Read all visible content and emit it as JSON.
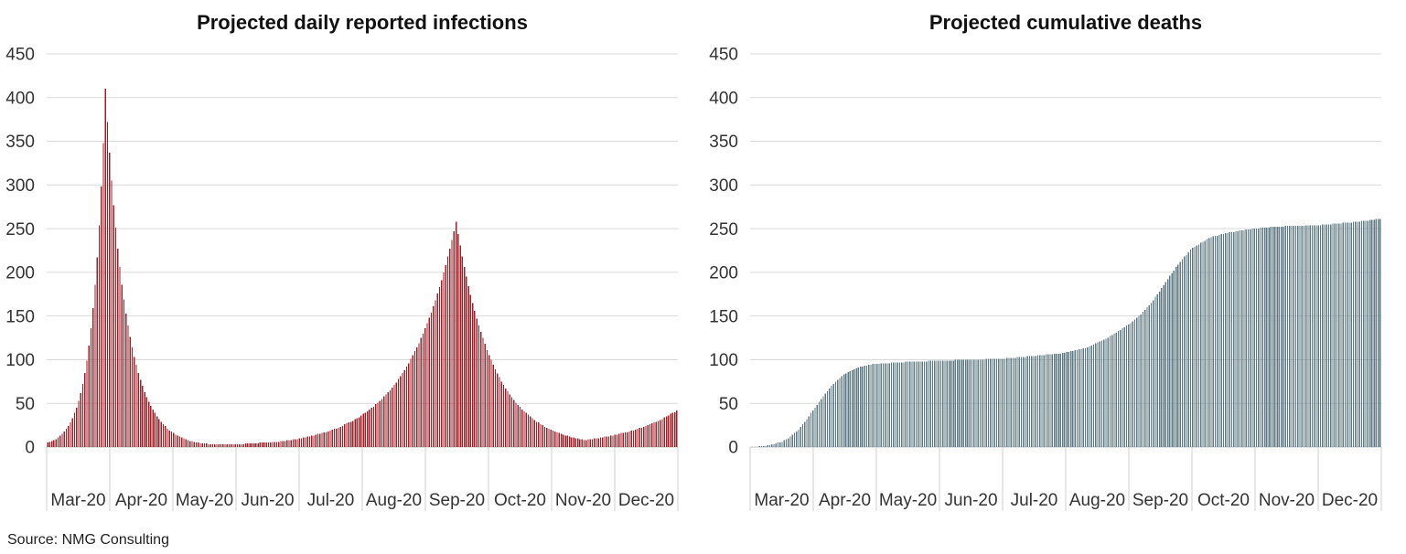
{
  "page": {
    "source_note": "Source: NMG Consulting",
    "background": "#ffffff"
  },
  "chart_data": [
    {
      "type": "bar",
      "title": "Projected daily reported infections",
      "bar_color": "#a21e24",
      "gridline_color": "#d9d9d9",
      "grid": true,
      "legend": "none",
      "x_unit": "day",
      "ylim": [
        0,
        450
      ],
      "y_ticks": [
        0,
        50,
        100,
        150,
        200,
        250,
        300,
        350,
        400,
        450
      ],
      "x_labels": [
        "Mar-20",
        "Apr-20",
        "May-20",
        "Jun-20",
        "Jul-20",
        "Aug-20",
        "Sep-20",
        "Oct-20",
        "Nov-20",
        "Dec-20"
      ],
      "peak_values": {
        "first_wave_peak": 410,
        "second_wave_peak": 258
      },
      "values": [
        5,
        6,
        7,
        8,
        9,
        11,
        13,
        15,
        18,
        21,
        24,
        28,
        33,
        39,
        45,
        53,
        62,
        72,
        85,
        99,
        116,
        136,
        159,
        186,
        217,
        254,
        298,
        348,
        410,
        372,
        337,
        305,
        277,
        251,
        227,
        206,
        186,
        169,
        153,
        139,
        126,
        114,
        103,
        94,
        85,
        77,
        70,
        63,
        57,
        52,
        47,
        43,
        39,
        35,
        32,
        29,
        26,
        24,
        21,
        19,
        18,
        16,
        14,
        13,
        12,
        11,
        10,
        9,
        8,
        7,
        7,
        6,
        5,
        5,
        4,
        4,
        4,
        4,
        3,
        3,
        3,
        3,
        3,
        3,
        3,
        3,
        3,
        3,
        3,
        3,
        3,
        3,
        3,
        3,
        3,
        3,
        4,
        4,
        4,
        4,
        4,
        4,
        4,
        5,
        5,
        5,
        5,
        5,
        5,
        6,
        6,
        6,
        6,
        7,
        7,
        7,
        8,
        8,
        8,
        9,
        9,
        9,
        10,
        10,
        11,
        11,
        12,
        12,
        13,
        13,
        14,
        15,
        15,
        16,
        17,
        17,
        18,
        19,
        20,
        21,
        21,
        22,
        23,
        24,
        26,
        27,
        28,
        29,
        30,
        32,
        33,
        34,
        36,
        38,
        39,
        41,
        43,
        45,
        46,
        49,
        51,
        53,
        55,
        58,
        60,
        63,
        65,
        68,
        71,
        74,
        78,
        81,
        85,
        88,
        92,
        96,
        101,
        105,
        110,
        114,
        119,
        125,
        130,
        136,
        142,
        148,
        154,
        161,
        168,
        176,
        183,
        191,
        200,
        208,
        218,
        227,
        237,
        247,
        258,
        244,
        231,
        218,
        206,
        195,
        184,
        174,
        165,
        156,
        147,
        139,
        132,
        125,
        118,
        111,
        105,
        100,
        94,
        89,
        84,
        80,
        75,
        71,
        67,
        64,
        60,
        57,
        54,
        51,
        48,
        46,
        43,
        41,
        39,
        37,
        35,
        33,
        31,
        29,
        28,
        26,
        25,
        23,
        22,
        21,
        20,
        19,
        18,
        17,
        16,
        15,
        14,
        13,
        13,
        12,
        11,
        11,
        10,
        10,
        9,
        9,
        8,
        8,
        9,
        9,
        9,
        10,
        10,
        10,
        11,
        11,
        12,
        12,
        12,
        13,
        13,
        14,
        14,
        15,
        16,
        16,
        17,
        17,
        18,
        19,
        19,
        20,
        21,
        22,
        22,
        23,
        24,
        25,
        26,
        27,
        28,
        29,
        30,
        31,
        32,
        34,
        35,
        36,
        38,
        39,
        40,
        42
      ]
    },
    {
      "type": "bar",
      "title": "Projected cumulative deaths",
      "bar_color": "#5c7886",
      "gridline_color": "#d9d9d9",
      "grid": true,
      "legend": "none",
      "x_unit": "day",
      "ylim": [
        0,
        450
      ],
      "y_ticks": [
        0,
        50,
        100,
        150,
        200,
        250,
        300,
        350,
        400,
        450
      ],
      "x_labels": [
        "Mar-20",
        "Apr-20",
        "May-20",
        "Jun-20",
        "Jul-20",
        "Aug-20",
        "Sep-20",
        "Oct-20",
        "Nov-20",
        "Dec-20"
      ],
      "peak_values": {
        "final_value": 261
      },
      "values": [
        0,
        0,
        0,
        0,
        1,
        1,
        1,
        1,
        2,
        2,
        3,
        3,
        4,
        5,
        5,
        6,
        8,
        9,
        10,
        12,
        14,
        16,
        18,
        20,
        23,
        26,
        29,
        32,
        35,
        39,
        42,
        45,
        48,
        52,
        55,
        58,
        61,
        64,
        67,
        70,
        72,
        75,
        77,
        79,
        81,
        83,
        84,
        86,
        87,
        88,
        89,
        90,
        91,
        92,
        92,
        93,
        93,
        94,
        94,
        95,
        95,
        95,
        95,
        96,
        96,
        96,
        96,
        96,
        97,
        97,
        97,
        97,
        97,
        97,
        97,
        98,
        98,
        98,
        98,
        98,
        98,
        98,
        98,
        98,
        98,
        98,
        99,
        99,
        99,
        99,
        99,
        99,
        99,
        99,
        99,
        99,
        99,
        99,
        99,
        100,
        100,
        100,
        100,
        100,
        100,
        100,
        100,
        100,
        100,
        100,
        100,
        100,
        100,
        100,
        101,
        101,
        101,
        101,
        101,
        101,
        101,
        101,
        101,
        101,
        102,
        102,
        102,
        102,
        102,
        103,
        103,
        103,
        103,
        103,
        104,
        104,
        104,
        104,
        104,
        105,
        105,
        105,
        105,
        106,
        106,
        106,
        106,
        107,
        107,
        107,
        107,
        108,
        108,
        109,
        109,
        110,
        110,
        111,
        111,
        112,
        112,
        113,
        113,
        114,
        115,
        116,
        117,
        119,
        120,
        121,
        122,
        123,
        124,
        125,
        127,
        128,
        130,
        131,
        133,
        134,
        136,
        137,
        139,
        140,
        142,
        144,
        146,
        148,
        150,
        152,
        155,
        157,
        160,
        162,
        165,
        168,
        172,
        175,
        178,
        182,
        185,
        189,
        192,
        196,
        199,
        202,
        206,
        209,
        212,
        215,
        218,
        220,
        223,
        226,
        228,
        229,
        231,
        232,
        234,
        235,
        236,
        238,
        239,
        240,
        241,
        242,
        242,
        243,
        244,
        244,
        245,
        245,
        246,
        246,
        246,
        247,
        247,
        248,
        248,
        248,
        249,
        249,
        249,
        250,
        250,
        250,
        250,
        251,
        251,
        251,
        251,
        251,
        252,
        252,
        252,
        252,
        252,
        252,
        252,
        253,
        253,
        253,
        253,
        253,
        253,
        253,
        253,
        253,
        253,
        254,
        254,
        254,
        254,
        254,
        254,
        254,
        254,
        255,
        255,
        255,
        255,
        255,
        256,
        256,
        256,
        256,
        256,
        257,
        257,
        257,
        257,
        257,
        258,
        258,
        258,
        258,
        259,
        259,
        259,
        259,
        260,
        260,
        260,
        261,
        261,
        261
      ]
    }
  ]
}
